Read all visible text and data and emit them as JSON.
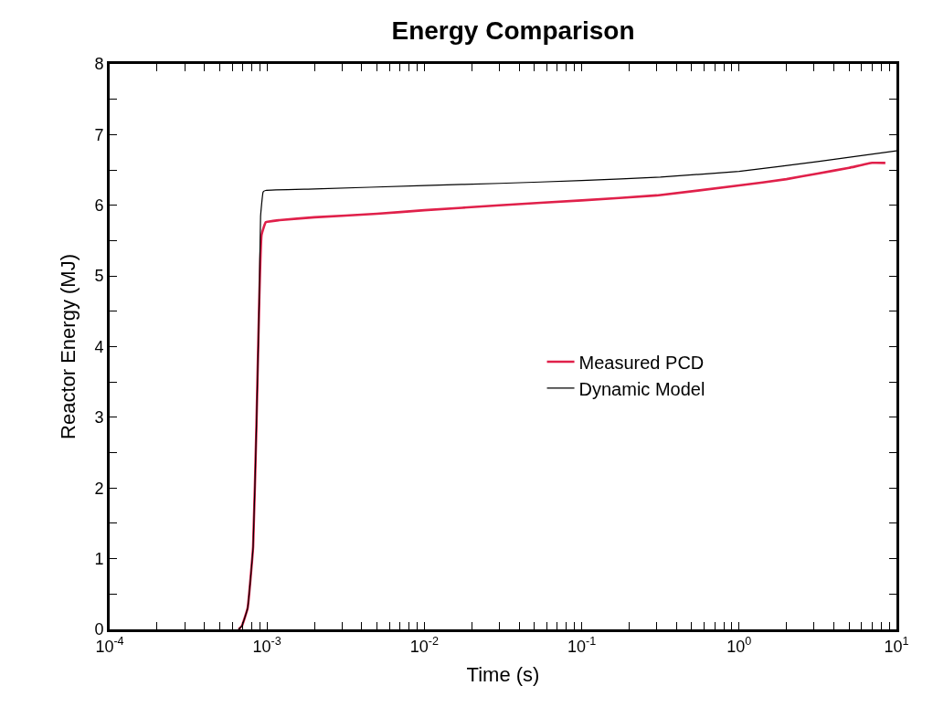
{
  "chart_data": {
    "type": "line",
    "title": "Energy Comparison",
    "xlabel": "Time (s)",
    "ylabel": "Reactor Energy (MJ)",
    "log": "x",
    "legend": "right",
    "marker": "none",
    "line_style": "solid",
    "xlim": [
      0.0001,
      10
    ],
    "ylim": [
      0,
      8
    ],
    "xticks": [
      {
        "value": 0.0001,
        "label": "10$^{-4}$"
      },
      {
        "value": 0.0002,
        "label": null
      },
      {
        "value": 0.0003,
        "label": null
      },
      {
        "value": 0.0004,
        "label": null
      },
      {
        "value": 0.0005,
        "label": null
      },
      {
        "value": 0.0006,
        "label": null
      },
      {
        "value": 0.0007,
        "label": null
      },
      {
        "value": 0.0008,
        "label": null
      },
      {
        "value": 0.0009,
        "label": null
      },
      {
        "value": 0.001,
        "label": "10$^{-3}$"
      },
      {
        "value": 0.002,
        "label": null
      },
      {
        "value": 0.003,
        "label": null
      },
      {
        "value": 0.004,
        "label": null
      },
      {
        "value": 0.005,
        "label": null
      },
      {
        "value": 0.006,
        "label": null
      },
      {
        "value": 0.007,
        "label": null
      },
      {
        "value": 0.008,
        "label": null
      },
      {
        "value": 0.009,
        "label": null
      },
      {
        "value": 0.01,
        "label": "10$^{-2}$"
      },
      {
        "value": 0.02,
        "label": null
      },
      {
        "value": 0.03,
        "label": null
      },
      {
        "value": 0.04,
        "label": null
      },
      {
        "value": 0.05,
        "label": null
      },
      {
        "value": 0.06,
        "label": null
      },
      {
        "value": 0.07,
        "label": null
      },
      {
        "value": 0.08,
        "label": null
      },
      {
        "value": 0.09,
        "label": null
      },
      {
        "value": 0.1,
        "label": "10$^{-1}$"
      },
      {
        "value": 0.2,
        "label": null
      },
      {
        "value": 0.3,
        "label": null
      },
      {
        "value": 0.4,
        "label": null
      },
      {
        "value": 0.5,
        "label": null
      },
      {
        "value": 0.6,
        "label": null
      },
      {
        "value": 0.7,
        "label": null
      },
      {
        "value": 0.8,
        "label": null
      },
      {
        "value": 0.9,
        "label": null
      },
      {
        "value": 1,
        "label": "10$^{0}$"
      },
      {
        "value": 2,
        "label": null
      },
      {
        "value": 3,
        "label": null
      },
      {
        "value": 4,
        "label": null
      },
      {
        "value": 5,
        "label": null
      },
      {
        "value": 6,
        "label": null
      },
      {
        "value": 7,
        "label": null
      },
      {
        "value": 8,
        "label": null
      },
      {
        "value": 9,
        "label": null
      },
      {
        "value": 10,
        "label": "10$^{1}$"
      }
    ],
    "yticks": [
      0,
      {
        "value": 0.5,
        "label": null
      },
      1,
      {
        "value": 1.5,
        "label": null
      },
      2,
      {
        "value": 2.5,
        "label": null
      },
      3,
      {
        "value": 3.5,
        "label": null
      },
      4,
      {
        "value": 4.5,
        "label": null
      },
      5,
      {
        "value": 5.5,
        "label": null
      },
      6,
      {
        "value": 6.5,
        "label": null
      },
      7,
      {
        "value": 7.5,
        "label": null
      },
      8
    ],
    "series": [
      {
        "name": "Measured PCD",
        "color": "#e0204a",
        "x": [
          0.00066,
          0.000693,
          0.000753,
          0.000816,
          0.000857,
          0.000892,
          0.000923,
          0.000982,
          0.0012,
          0.002,
          0.005,
          0.01,
          0.03,
          0.1,
          0.3,
          1,
          2,
          3.16,
          5,
          7,
          8.5
        ],
        "values": [
          0,
          0.05,
          0.3,
          1.17,
          2.9,
          4.63,
          5.58,
          5.76,
          5.79,
          5.83,
          5.88,
          5.93,
          6.0,
          6.07,
          6.14,
          6.28,
          6.37,
          6.45,
          6.53,
          6.6,
          6.6
        ]
      },
      {
        "name": "Dynamic Model",
        "color": "#000000",
        "x": [
          0.00066,
          0.000693,
          0.000753,
          0.000816,
          0.000857,
          0.000892,
          0.00091,
          0.000945,
          0.00098,
          0.002,
          0.01,
          0.03,
          0.1,
          0.316,
          1,
          3.16,
          10
        ],
        "values": [
          0,
          0.05,
          0.3,
          1.17,
          2.9,
          4.63,
          5.84,
          6.19,
          6.21,
          6.23,
          6.28,
          6.31,
          6.35,
          6.4,
          6.48,
          6.62,
          6.77
        ]
      }
    ]
  }
}
